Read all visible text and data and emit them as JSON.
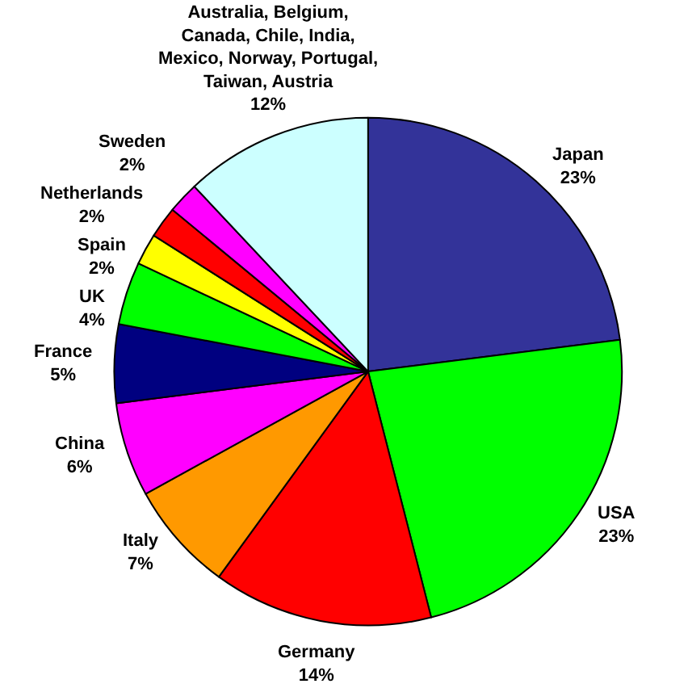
{
  "chart_data": {
    "type": "pie",
    "categories": [
      "Japan",
      "USA",
      "Germany",
      "Italy",
      "China",
      "France",
      "UK",
      "Spain",
      "Netherlands",
      "Sweden",
      "Australia, Belgium, Canada, Chile, India, Mexico, Norway, Portugal, Taiwan, Austria"
    ],
    "values": [
      23,
      23,
      14,
      7,
      6,
      5,
      4,
      2,
      2,
      2,
      12
    ],
    "value_labels": [
      "23%",
      "23%",
      "14%",
      "7%",
      "6%",
      "5%",
      "4%",
      "2%",
      "2%",
      "2%",
      "12%"
    ],
    "colors": [
      "#333399",
      "#00ff00",
      "#ff0000",
      "#ff9900",
      "#ff00ff",
      "#000080",
      "#00ff00",
      "#ffff00",
      "#ff0000",
      "#ff00ff",
      "#ccffff"
    ]
  }
}
